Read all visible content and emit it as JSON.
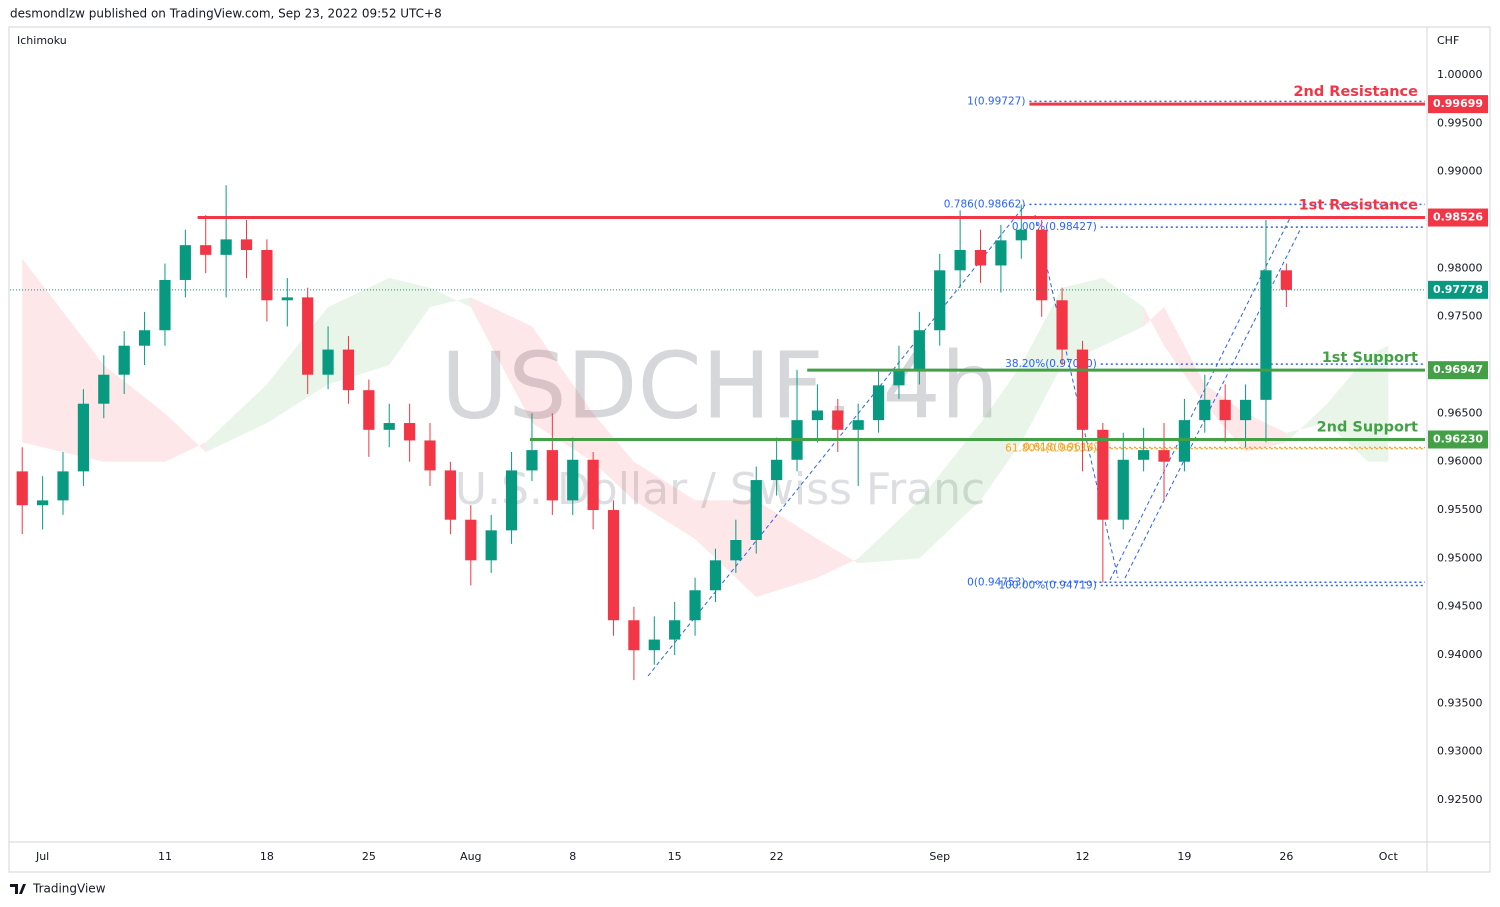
{
  "header": {
    "text": "desmondlzw published on TradingView.com, Sep 23, 2022 09:52 UTC+8"
  },
  "footer": {
    "brand": "TradingView"
  },
  "chart_data": {
    "type": "candlestick",
    "indicator": "Ichimoku",
    "currency": "CHF",
    "watermark": {
      "symbol": "USDCHF, 4h",
      "name": "U.S. Dollar / Swiss Franc"
    },
    "x": [
      -1,
      0,
      1,
      2,
      3,
      4,
      5,
      6,
      7,
      8,
      9,
      10,
      11,
      12,
      13,
      14,
      15,
      16,
      17,
      18,
      19,
      20,
      21,
      22,
      23,
      24,
      25,
      26,
      27,
      28,
      29,
      30,
      31,
      32,
      33,
      34,
      35,
      36,
      37,
      38,
      39,
      40,
      41,
      42,
      43,
      44,
      45,
      46,
      47,
      48,
      49,
      50,
      51,
      52,
      53,
      54,
      55,
      56,
      57,
      58,
      59,
      60,
      61
    ],
    "open": [
      0.959,
      0.9555,
      0.956,
      0.959,
      0.966,
      0.969,
      0.972,
      0.9736,
      0.9788,
      0.9824,
      0.9814,
      0.983,
      0.9819,
      0.9767,
      0.977,
      0.969,
      0.9716,
      0.9674,
      0.9633,
      0.964,
      0.9622,
      0.9591,
      0.954,
      0.9498,
      0.9529,
      0.9591,
      0.9612,
      0.956,
      0.9602,
      0.955,
      0.9436,
      0.9405,
      0.9416,
      0.9436,
      0.9467,
      0.9498,
      0.9519,
      0.9581,
      0.9602,
      0.9643,
      0.9653,
      0.9633,
      0.9643,
      0.9679,
      0.9695,
      0.9736,
      0.9798,
      0.9819,
      0.9803,
      0.9829,
      0.984,
      0.9767,
      0.9716,
      0.9633,
      0.954,
      0.9602,
      0.9612,
      0.96,
      0.9643,
      0.9664,
      0.9643,
      0.9664,
      0.9798
    ],
    "high": [
      0.9615,
      0.9585,
      0.961,
      0.9675,
      0.971,
      0.9735,
      0.9755,
      0.9805,
      0.984,
      0.9855,
      0.9886,
      0.985,
      0.983,
      0.979,
      0.978,
      0.974,
      0.973,
      0.9685,
      0.966,
      0.966,
      0.964,
      0.96,
      0.9555,
      0.9545,
      0.961,
      0.965,
      0.965,
      0.9625,
      0.961,
      0.956,
      0.945,
      0.944,
      0.9455,
      0.948,
      0.951,
      0.954,
      0.9595,
      0.9625,
      0.9695,
      0.968,
      0.9665,
      0.966,
      0.9695,
      0.972,
      0.9755,
      0.9815,
      0.986,
      0.984,
      0.9845,
      0.9866,
      0.985,
      0.978,
      0.9725,
      0.964,
      0.963,
      0.9635,
      0.964,
      0.9665,
      0.969,
      0.968,
      0.968,
      0.985,
      0.9805
    ],
    "low": [
      0.9525,
      0.953,
      0.9545,
      0.9575,
      0.9645,
      0.967,
      0.97,
      0.972,
      0.977,
      0.9795,
      0.977,
      0.979,
      0.9745,
      0.974,
      0.967,
      0.9675,
      0.966,
      0.9605,
      0.9615,
      0.96,
      0.9575,
      0.9525,
      0.9472,
      0.9485,
      0.9515,
      0.958,
      0.9545,
      0.9545,
      0.953,
      0.942,
      0.9374,
      0.939,
      0.94,
      0.942,
      0.9455,
      0.9485,
      0.9505,
      0.9565,
      0.959,
      0.962,
      0.961,
      0.9575,
      0.963,
      0.9665,
      0.968,
      0.972,
      0.978,
      0.9785,
      0.9775,
      0.981,
      0.975,
      0.97,
      0.959,
      0.9475,
      0.953,
      0.959,
      0.956,
      0.959,
      0.963,
      0.962,
      0.9615,
      0.962,
      0.976
    ],
    "close": [
      0.9555,
      0.956,
      0.959,
      0.966,
      0.969,
      0.972,
      0.9736,
      0.9788,
      0.9824,
      0.9814,
      0.983,
      0.9819,
      0.9767,
      0.977,
      0.969,
      0.9716,
      0.9674,
      0.9633,
      0.964,
      0.9622,
      0.9591,
      0.954,
      0.9498,
      0.9529,
      0.9591,
      0.9612,
      0.956,
      0.9602,
      0.955,
      0.9436,
      0.9405,
      0.9416,
      0.9436,
      0.9467,
      0.9498,
      0.9519,
      0.9581,
      0.9602,
      0.9643,
      0.9653,
      0.9633,
      0.9643,
      0.9679,
      0.9695,
      0.9736,
      0.9798,
      0.9819,
      0.9803,
      0.9829,
      0.984,
      0.9767,
      0.9716,
      0.9633,
      0.954,
      0.9602,
      0.9612,
      0.96,
      0.9643,
      0.9664,
      0.9643,
      0.9664,
      0.9798,
      0.97778
    ],
    "up_color": "#089981",
    "down_color": "#f23645",
    "cloud": {
      "x": [
        -1,
        3,
        6,
        8,
        11,
        14,
        17,
        19,
        21,
        24,
        27,
        29,
        32,
        35,
        38,
        40,
        43,
        46,
        48,
        50,
        52,
        54,
        55,
        57,
        59,
        61,
        63,
        65,
        66
      ],
      "span_a": [
        0.962,
        0.96,
        0.96,
        0.962,
        0.968,
        0.976,
        0.979,
        0.978,
        0.976,
        0.964,
        0.96,
        0.956,
        0.952,
        0.946,
        0.948,
        0.95,
        0.956,
        0.964,
        0.97,
        0.978,
        0.979,
        0.976,
        0.972,
        0.966,
        0.961,
        0.962,
        0.966,
        0.971,
        0.972
      ],
      "span_b": [
        0.981,
        0.97,
        0.965,
        0.961,
        0.964,
        0.968,
        0.97,
        0.976,
        0.977,
        0.974,
        0.965,
        0.96,
        0.956,
        0.956,
        0.952,
        0.9495,
        0.95,
        0.956,
        0.962,
        0.97,
        0.972,
        0.974,
        0.976,
        0.968,
        0.965,
        0.963,
        0.964,
        0.96,
        0.96
      ],
      "up_color": "rgba(76,175,80,0.13)",
      "down_color": "rgba(242,54,69,0.12)"
    },
    "levels": [
      {
        "label": "2nd Resistance",
        "value": 0.99699,
        "value_label": "0.99699",
        "x0": 48.4,
        "color": "#f23645"
      },
      {
        "label": "1st Resistance",
        "value": 0.98526,
        "value_label": "0.98526",
        "x0": 7.6,
        "color": "#f23645"
      },
      {
        "label": "1st Support",
        "value": 0.96947,
        "value_label": "0.96947",
        "x0": 37.5,
        "color": "#43a047"
      },
      {
        "label": "2nd Support",
        "value": 0.9623,
        "value_label": "0.96230",
        "x0": 23.9,
        "color": "#43a047"
      }
    ],
    "fib_levels": [
      {
        "label": "1(0.99727)",
        "value": 0.99727,
        "x0": 48.4,
        "color": "#2962ff"
      },
      {
        "label": "0.786(0.98662)",
        "value": 0.98662,
        "x0": 48.4,
        "color": "#2962ff"
      },
      {
        "label": "0.00%(0.98427)",
        "value": 0.98427,
        "x0": 51.9,
        "color": "#2962ff"
      },
      {
        "label": "38.20%(0.97010)",
        "value": 0.9701,
        "x0": 51.9,
        "color": "#2962ff"
      },
      {
        "label": "0.618(0.96147)",
        "value": 0.96147,
        "x0": 52.3,
        "color": "#f5a623"
      },
      {
        "label": "61.80%(0.96135)",
        "value": 0.96135,
        "x0": 51.9,
        "color": "#f5a623"
      },
      {
        "label": "0(0.94753)",
        "value": 0.94753,
        "x0": 48.4,
        "color": "#2962ff"
      },
      {
        "label": "100.00%(0.94719)",
        "value": 0.94719,
        "x0": 51.9,
        "color": "#2962ff"
      }
    ],
    "xlim": [
      -1.6,
      67.8
    ],
    "xticks": [
      {
        "value": 0,
        "label": "Jul"
      },
      {
        "value": 6,
        "label": "11"
      },
      {
        "value": 11,
        "label": "18"
      },
      {
        "value": 16,
        "label": "25"
      },
      {
        "value": 21,
        "label": "Aug"
      },
      {
        "value": 26,
        "label": "8"
      },
      {
        "value": 31,
        "label": "15"
      },
      {
        "value": 36,
        "label": "22"
      },
      {
        "value": 44,
        "label": "Sep"
      },
      {
        "value": 51,
        "label": "12"
      },
      {
        "value": 56,
        "label": "19"
      },
      {
        "value": 61,
        "label": "26"
      },
      {
        "value": 66,
        "label": "Oct"
      }
    ],
    "ylim": [
      0.92066,
      1.00497
    ],
    "yticks": [
      {
        "value": 1.0,
        "label": "1.00000"
      },
      {
        "value": 0.995,
        "label": "0.99500"
      },
      {
        "value": 0.99,
        "label": "0.99000"
      },
      {
        "value": 0.98,
        "label": "0.98000"
      },
      {
        "value": 0.975,
        "label": "0.97500"
      },
      {
        "value": 0.965,
        "label": "0.96500"
      },
      {
        "value": 0.96,
        "label": "0.96000"
      },
      {
        "value": 0.955,
        "label": "0.95500"
      },
      {
        "value": 0.95,
        "label": "0.95000"
      },
      {
        "value": 0.945,
        "label": "0.94500"
      },
      {
        "value": 0.94,
        "label": "0.94000"
      },
      {
        "value": 0.935,
        "label": "0.93500"
      },
      {
        "value": 0.93,
        "label": "0.93000"
      },
      {
        "value": 0.925,
        "label": "0.92500"
      }
    ]
  }
}
